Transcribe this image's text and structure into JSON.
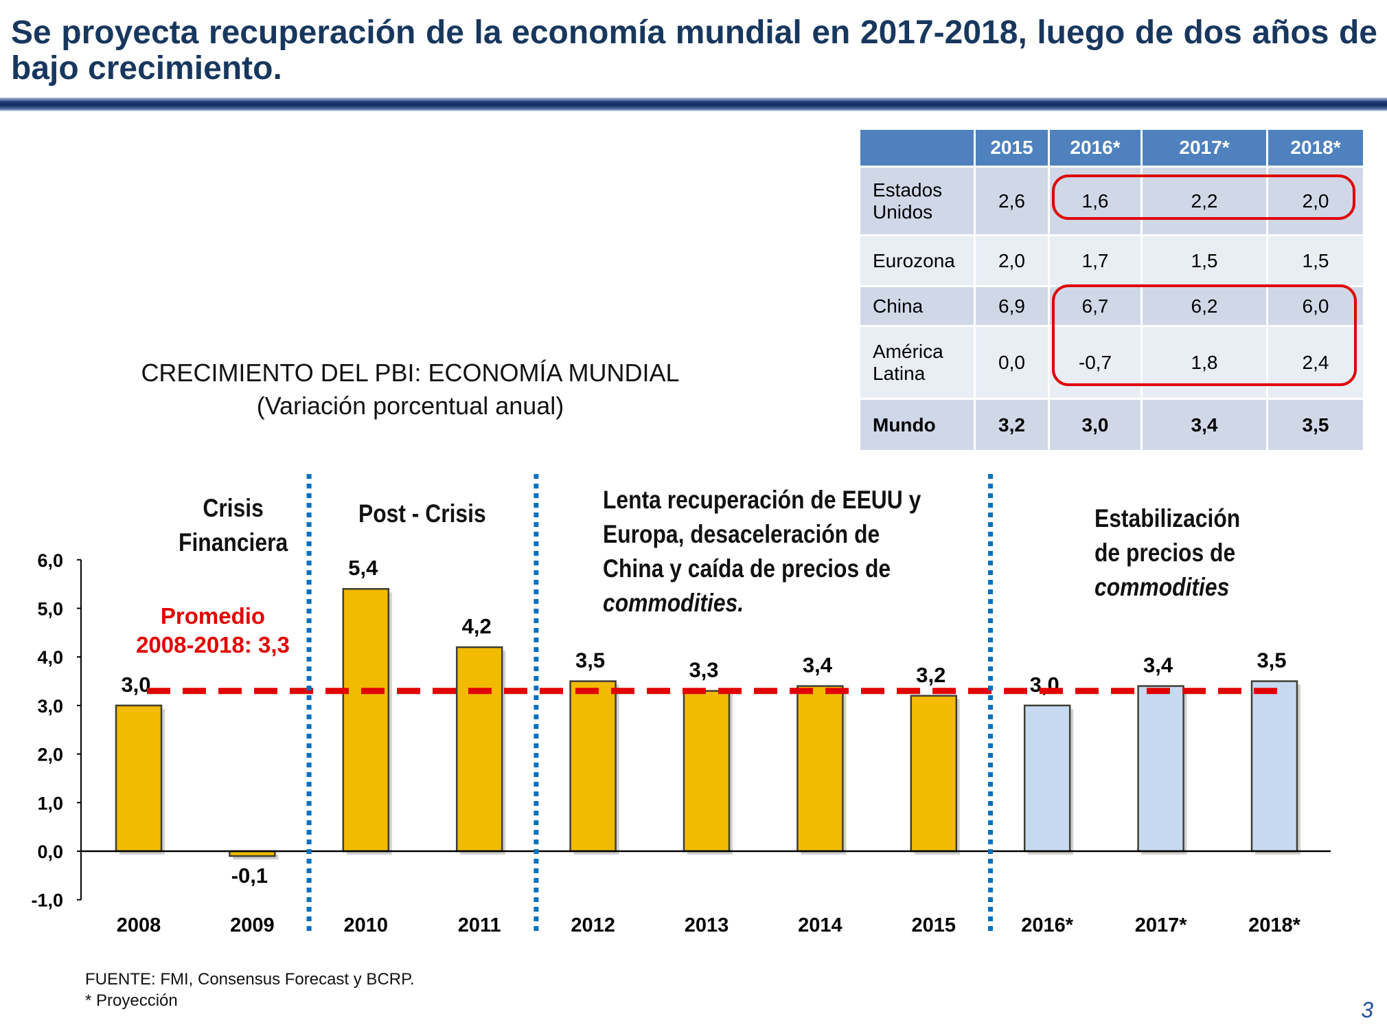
{
  "slide": {
    "title": "Se proyecta recuperación de la economía mundial en 2017-2018, luego de dos años de bajo crecimiento.",
    "page_number": "3"
  },
  "table": {
    "headers": [
      "",
      "2015",
      "2016*",
      "2017*",
      "2018*"
    ],
    "rows": [
      {
        "label": "Estados Unidos",
        "values": [
          "2,6",
          "1,6",
          "2,2",
          "2,0"
        ]
      },
      {
        "label": "Eurozona",
        "values": [
          "2,0",
          "1,7",
          "1,5",
          "1,5"
        ]
      },
      {
        "label": "China",
        "values": [
          "6,9",
          "6,7",
          "6,2",
          "6,0"
        ]
      },
      {
        "label": "América Latina",
        "values": [
          "0,0",
          "-0,7",
          "1,8",
          "2,4"
        ]
      },
      {
        "label": "Mundo",
        "values": [
          "3,2",
          "3,0",
          "3,4",
          "3,5"
        ]
      }
    ]
  },
  "periods": {
    "crisis": {
      "line1": "Crisis",
      "line2": "Financiera"
    },
    "post": {
      "line1": "Post - Crisis"
    },
    "lenta": {
      "line1": "Lenta recuperación de EEUU y",
      "line2": "Europa, desaceleración de",
      "line3": "China y caída de precios de",
      "line4": "commodities."
    },
    "estab": {
      "line1": "Estabilización",
      "line2": "de precios de",
      "line3": "commodities"
    }
  },
  "average": {
    "line1": "Promedio",
    "line2": "2008-2018: 3,3"
  },
  "source": {
    "line1": "FUENTE: FMI, Consensus Forecast y BCRP.",
    "line2": "* Proyección"
  },
  "colors": {
    "actual": "#F2BA00",
    "projection": "#C6D9F1",
    "bar_border": "#3E3E34",
    "average_line": "#E00000",
    "separator": "#0070C0",
    "header_blue": "#4E81BD"
  },
  "chart_data": {
    "type": "bar",
    "title": "CRECIMIENTO DEL PBI: ECONOMÍA MUNDIAL",
    "subtitle": "(Variación porcentual anual)",
    "categories": [
      "2008",
      "2009",
      "2010",
      "2011",
      "2012",
      "2013",
      "2014",
      "2015",
      "2016*",
      "2017*",
      "2018*"
    ],
    "values": [
      3.0,
      -0.1,
      5.4,
      4.2,
      3.5,
      3.3,
      3.4,
      3.2,
      3.0,
      3.4,
      3.5
    ],
    "value_labels": [
      "3,0",
      "-0,1",
      "5,4",
      "4,2",
      "3,5",
      "3,3",
      "3,4",
      "3,2",
      "3,0",
      "3,4",
      "3,5"
    ],
    "projected": [
      false,
      false,
      false,
      false,
      false,
      false,
      false,
      false,
      true,
      true,
      true
    ],
    "yticks": [
      6,
      5,
      4,
      3,
      2,
      1,
      0,
      -1
    ],
    "ytick_labels": [
      "6,0",
      "5,0",
      "4,0",
      "3,0",
      "2,0",
      "1,0",
      "0,0",
      "-1,0"
    ],
    "ylim": [
      -1,
      6
    ],
    "average_value": 3.3,
    "separators_after": [
      1,
      3,
      7
    ],
    "xlabel": "",
    "ylabel": ""
  }
}
